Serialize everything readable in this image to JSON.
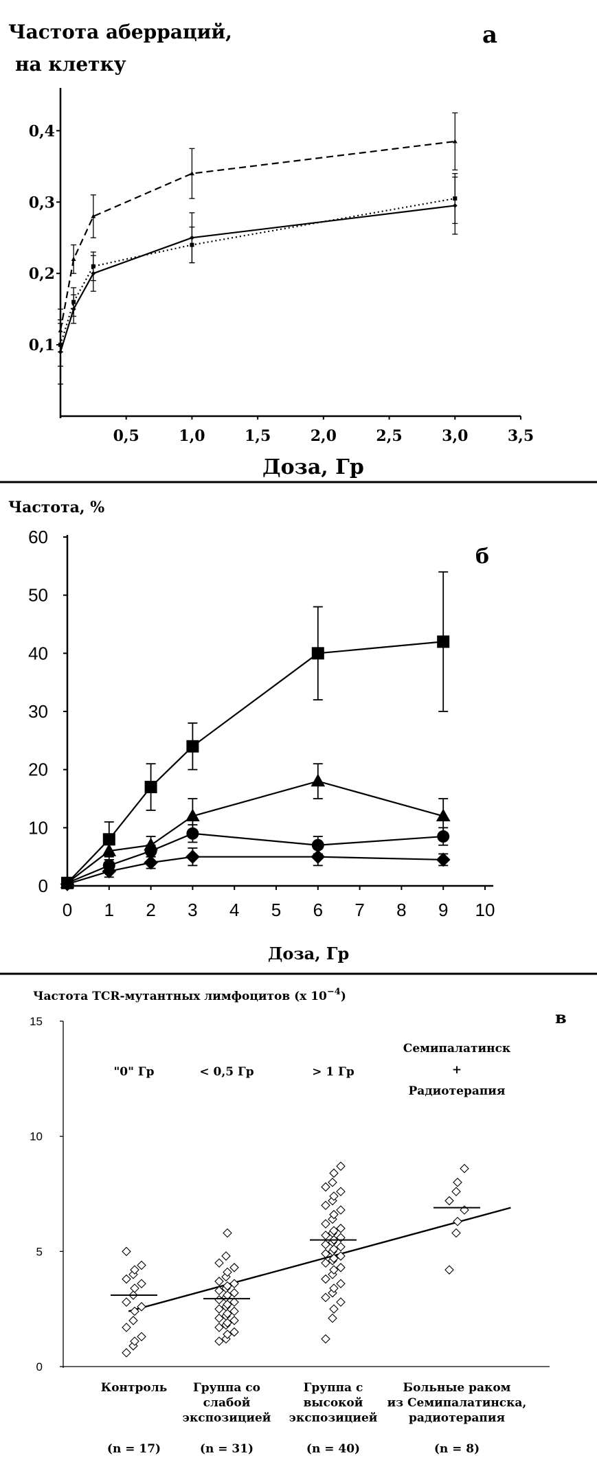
{
  "chart_data": [
    {
      "type": "line",
      "panel_letter": "а",
      "ylabel": "Частота аберраций,",
      "ylabel_line2": "на клетку",
      "xlabel": "Доза,   Гр",
      "x_ticks": [
        "0,5",
        "1,0",
        "1,5",
        "2,0",
        "2,5",
        "3,0",
        "3,5"
      ],
      "y_ticks": [
        "0,1",
        "0,2",
        "0,3",
        "0,4"
      ],
      "xlim": [
        0,
        3.5
      ],
      "ylim": [
        0,
        0.46
      ],
      "series": [
        {
          "style": "dashed",
          "marker": "triangle",
          "x": [
            0,
            0.1,
            0.25,
            1.0,
            3.0
          ],
          "y": [
            0.12,
            0.22,
            0.28,
            0.34,
            0.385
          ],
          "err": [
            0.03,
            0.02,
            0.03,
            0.035,
            0.04
          ]
        },
        {
          "style": "dotted",
          "marker": "square",
          "x": [
            0,
            0.1,
            0.25,
            1.0,
            3.0
          ],
          "y": [
            0.1,
            0.16,
            0.21,
            0.24,
            0.305
          ],
          "err": [
            0.03,
            0.02,
            0.02,
            0.025,
            0.035
          ]
        },
        {
          "style": "solid",
          "marker": "diamond",
          "x": [
            0,
            0.1,
            0.25,
            1.0,
            3.0
          ],
          "y": [
            0.09,
            0.15,
            0.2,
            0.25,
            0.295
          ],
          "err": [
            0.045,
            0.02,
            0.025,
            0.035,
            0.04
          ]
        }
      ]
    },
    {
      "type": "line",
      "panel_letter": "б",
      "ylabel": "Частота, %",
      "xlabel": "Доза,    Гр",
      "x_ticks": [
        "0",
        "1",
        "2",
        "3",
        "4",
        "5",
        "6",
        "7",
        "8",
        "9",
        "10"
      ],
      "y_ticks": [
        "0",
        "10",
        "20",
        "30",
        "40",
        "50",
        "60"
      ],
      "xlim": [
        0,
        10
      ],
      "ylim": [
        0,
        60
      ],
      "series": [
        {
          "marker": "square",
          "x": [
            0,
            1,
            2,
            3,
            6,
            9
          ],
          "y": [
            0.5,
            8,
            17,
            24,
            40,
            42
          ],
          "err": [
            0.5,
            3,
            4,
            4,
            8,
            12
          ]
        },
        {
          "marker": "triangle",
          "x": [
            0,
            1,
            2,
            3,
            6,
            9
          ],
          "y": [
            0.5,
            6,
            7,
            12,
            18,
            12
          ],
          "err": [
            0.5,
            1.5,
            1.5,
            3,
            3,
            3
          ]
        },
        {
          "marker": "circle",
          "x": [
            0,
            1,
            2,
            3,
            6,
            9
          ],
          "y": [
            0.5,
            3.5,
            6,
            9,
            7,
            8.5
          ],
          "err": [
            0.5,
            1,
            1,
            1.5,
            1.5,
            1.5
          ]
        },
        {
          "marker": "diamond",
          "x": [
            0,
            1,
            2,
            3,
            6,
            9
          ],
          "y": [
            0.3,
            2.5,
            4,
            5,
            5,
            4.5
          ],
          "err": [
            0.3,
            1,
            1,
            1.5,
            1.5,
            1
          ]
        }
      ]
    },
    {
      "type": "scatter",
      "panel_letter": "в",
      "ylabel": "Частота TCR-мутантных лимфоцитов (x 10",
      "ylabel_exp": "−4",
      "ylabel_close": ")",
      "y_ticks": [
        "0",
        "5",
        "10",
        "15"
      ],
      "ylim": [
        0,
        15
      ],
      "trend_line": {
        "from": [
          0.45,
          2.4
        ],
        "to": [
          4.0,
          6.9
        ]
      },
      "groups": [
        {
          "label_lines": [
            "Контроль"
          ],
          "n": "(n = 17)",
          "dose_lines": [
            "\"0\" Гр"
          ],
          "mean": 3.1,
          "values": [
            0.6,
            0.9,
            1.1,
            1.3,
            1.7,
            2.0,
            2.4,
            2.6,
            2.8,
            3.1,
            3.4,
            3.6,
            3.8,
            4.0,
            4.2,
            4.4,
            5.0
          ]
        },
        {
          "label_lines": [
            "Группа со",
            "слабой",
            "экспозицией"
          ],
          "n": "(n = 31)",
          "dose_lines": [
            "< 0,5 Гр"
          ],
          "mean": 2.95,
          "values": [
            1.1,
            1.2,
            1.4,
            1.5,
            1.7,
            1.8,
            1.9,
            2.0,
            2.1,
            2.2,
            2.3,
            2.4,
            2.5,
            2.6,
            2.7,
            2.8,
            2.9,
            3.0,
            3.1,
            3.2,
            3.3,
            3.4,
            3.5,
            3.6,
            3.7,
            3.9,
            4.1,
            4.3,
            4.5,
            4.8,
            5.8
          ]
        },
        {
          "label_lines": [
            "Группа с",
            "высокой",
            "экспозицией"
          ],
          "n": "(n = 40)",
          "dose_lines": [
            "> 1 Гр"
          ],
          "mean": 5.5,
          "values": [
            1.2,
            2.1,
            2.5,
            2.8,
            3.0,
            3.2,
            3.4,
            3.6,
            3.8,
            4.0,
            4.2,
            4.3,
            4.5,
            4.6,
            4.7,
            4.8,
            4.9,
            5.0,
            5.1,
            5.2,
            5.3,
            5.4,
            5.5,
            5.6,
            5.7,
            5.8,
            5.9,
            6.0,
            6.2,
            6.4,
            6.6,
            6.8,
            7.0,
            7.2,
            7.4,
            7.6,
            7.8,
            8.0,
            8.4,
            8.7
          ]
        },
        {
          "label_lines": [
            "Больные раком",
            "из Семипалатинска,",
            "радиотерапия"
          ],
          "n": "(n = 8)",
          "dose_lines": [
            "Семипалатинск",
            "+",
            "Радиотерапия"
          ],
          "mean": 6.9,
          "values": [
            4.2,
            5.8,
            6.3,
            6.8,
            7.2,
            7.6,
            8.0,
            8.6
          ]
        }
      ]
    }
  ]
}
